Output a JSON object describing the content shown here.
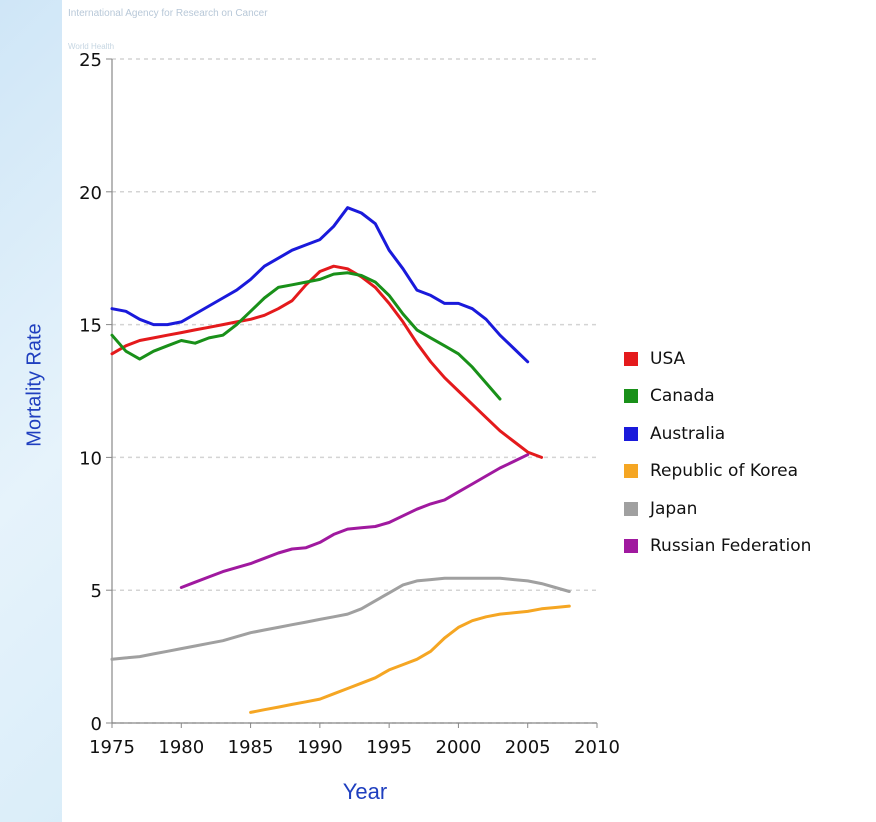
{
  "watermark": {
    "line1": "International Agency for Research on Cancer",
    "line2": "World Health"
  },
  "chart_data": {
    "type": "line",
    "xlabel": "Year",
    "ylabel": "Mortality Rate",
    "xlim": [
      1975,
      2010
    ],
    "ylim": [
      0,
      25
    ],
    "xticks": [
      1975,
      1980,
      1985,
      1990,
      1995,
      2000,
      2005,
      2010
    ],
    "yticks": [
      0,
      5,
      10,
      15,
      20,
      25
    ],
    "grid": "horizontal dashed",
    "legend_position": "right",
    "series": [
      {
        "name": "USA",
        "color": "#e41a1c",
        "x": [
          1975,
          1976,
          1977,
          1978,
          1979,
          1980,
          1981,
          1982,
          1983,
          1984,
          1985,
          1986,
          1987,
          1988,
          1989,
          1990,
          1991,
          1992,
          1993,
          1994,
          1995,
          1996,
          1997,
          1998,
          1999,
          2000,
          2001,
          2002,
          2003,
          2004,
          2005,
          2006
        ],
        "y": [
          13.9,
          14.2,
          14.4,
          14.5,
          14.6,
          14.7,
          14.8,
          14.9,
          15.0,
          15.1,
          15.2,
          15.35,
          15.6,
          15.9,
          16.5,
          17.0,
          17.2,
          17.1,
          16.8,
          16.4,
          15.8,
          15.1,
          14.3,
          13.6,
          13.0,
          12.5,
          12.0,
          11.5,
          11.0,
          10.6,
          10.2,
          10.0
        ]
      },
      {
        "name": "Canada",
        "color": "#199019",
        "x": [
          1975,
          1976,
          1977,
          1978,
          1979,
          1980,
          1981,
          1982,
          1983,
          1984,
          1985,
          1986,
          1987,
          1988,
          1989,
          1990,
          1991,
          1992,
          1993,
          1994,
          1995,
          1996,
          1997,
          1998,
          1999,
          2000,
          2001,
          2002,
          2003
        ],
        "y": [
          14.6,
          14.0,
          13.7,
          14.0,
          14.2,
          14.4,
          14.3,
          14.5,
          14.6,
          15.0,
          15.5,
          16.0,
          16.4,
          16.5,
          16.6,
          16.7,
          16.9,
          16.95,
          16.85,
          16.6,
          16.1,
          15.4,
          14.8,
          14.5,
          14.2,
          13.9,
          13.4,
          12.8,
          12.2
        ]
      },
      {
        "name": "Australia",
        "color": "#1a1adb",
        "x": [
          1975,
          1976,
          1977,
          1978,
          1979,
          1980,
          1981,
          1982,
          1983,
          1984,
          1985,
          1986,
          1987,
          1988,
          1989,
          1990,
          1991,
          1992,
          1993,
          1994,
          1995,
          1996,
          1997,
          1998,
          1999,
          2000,
          2001,
          2002,
          2003,
          2004,
          2005
        ],
        "y": [
          15.6,
          15.5,
          15.2,
          15.0,
          15.0,
          15.1,
          15.4,
          15.7,
          16.0,
          16.3,
          16.7,
          17.2,
          17.5,
          17.8,
          18.0,
          18.2,
          18.7,
          19.4,
          19.2,
          18.8,
          17.8,
          17.1,
          16.3,
          16.1,
          15.8,
          15.8,
          15.6,
          15.2,
          14.6,
          14.1,
          13.6
        ]
      },
      {
        "name": "Republic of Korea",
        "color": "#f5a623",
        "x": [
          1985,
          1986,
          1987,
          1988,
          1989,
          1990,
          1991,
          1992,
          1993,
          1994,
          1995,
          1996,
          1997,
          1998,
          1999,
          2000,
          2001,
          2002,
          2003,
          2004,
          2005,
          2006,
          2007,
          2008
        ],
        "y": [
          0.4,
          0.5,
          0.6,
          0.7,
          0.8,
          0.9,
          1.1,
          1.3,
          1.5,
          1.7,
          2.0,
          2.2,
          2.4,
          2.7,
          3.2,
          3.6,
          3.85,
          4.0,
          4.1,
          4.15,
          4.2,
          4.3,
          4.35,
          4.4
        ]
      },
      {
        "name": "Japan",
        "color": "#a0a0a0",
        "x": [
          1975,
          1976,
          1977,
          1978,
          1979,
          1980,
          1981,
          1982,
          1983,
          1984,
          1985,
          1986,
          1987,
          1988,
          1989,
          1990,
          1991,
          1992,
          1993,
          1994,
          1995,
          1996,
          1997,
          1998,
          1999,
          2000,
          2001,
          2002,
          2003,
          2004,
          2005,
          2006,
          2007,
          2008
        ],
        "y": [
          2.4,
          2.45,
          2.5,
          2.6,
          2.7,
          2.8,
          2.9,
          3.0,
          3.1,
          3.25,
          3.4,
          3.5,
          3.6,
          3.7,
          3.8,
          3.9,
          4.0,
          4.1,
          4.3,
          4.6,
          4.9,
          5.2,
          5.35,
          5.4,
          5.45,
          5.45,
          5.45,
          5.45,
          5.45,
          5.4,
          5.35,
          5.25,
          5.1,
          4.95
        ]
      },
      {
        "name": "Russian Federation",
        "color": "#a0199f",
        "x": [
          1980,
          1981,
          1982,
          1983,
          1984,
          1985,
          1986,
          1987,
          1988,
          1989,
          1990,
          1991,
          1992,
          1993,
          1994,
          1995,
          1996,
          1997,
          1998,
          1999,
          2000,
          2001,
          2002,
          2003,
          2004,
          2005
        ],
        "y": [
          5.1,
          5.3,
          5.5,
          5.7,
          5.85,
          6.0,
          6.2,
          6.4,
          6.55,
          6.6,
          6.8,
          7.1,
          7.3,
          7.35,
          7.4,
          7.55,
          7.8,
          8.05,
          8.25,
          8.4,
          8.7,
          9.0,
          9.3,
          9.6,
          9.85,
          10.1
        ]
      }
    ]
  }
}
